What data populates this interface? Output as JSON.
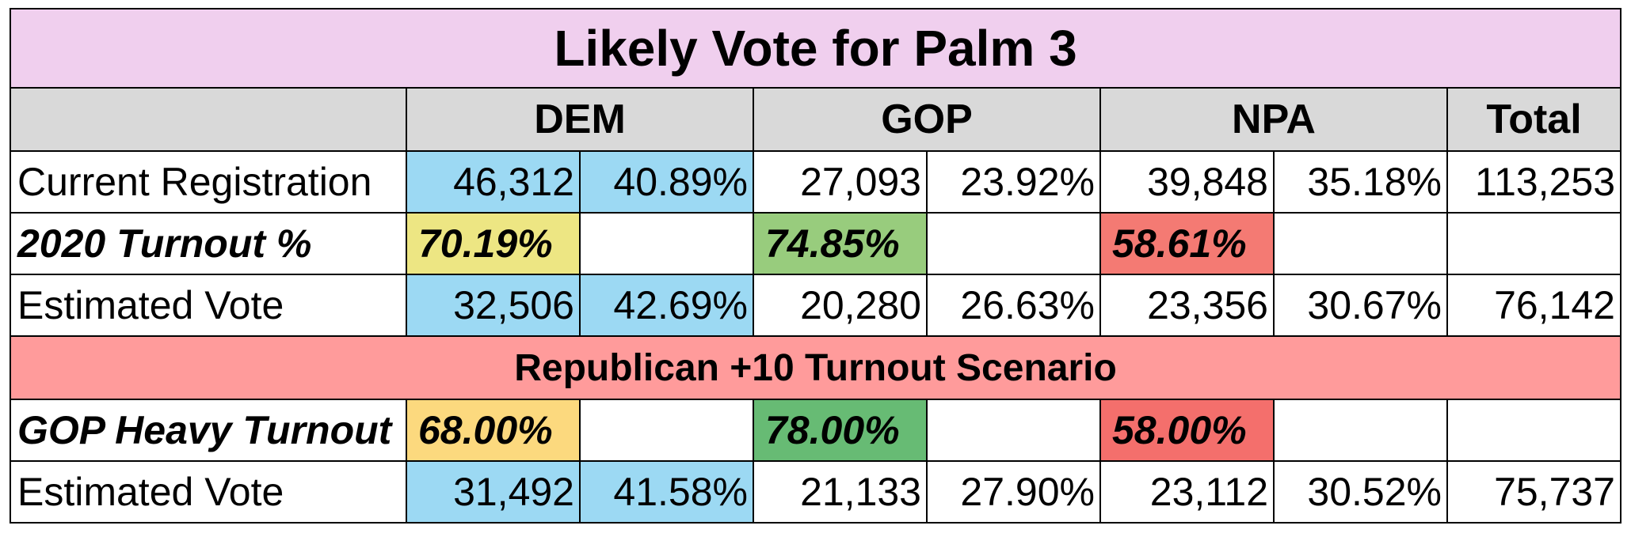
{
  "title": "Likely Vote for Palm 3",
  "headers": {
    "dem": "DEM",
    "gop": "GOP",
    "npa": "NPA",
    "total": "Total"
  },
  "current_registration": {
    "label": "Current Registration",
    "dem_count": "46,312",
    "dem_pct": "40.89%",
    "gop_count": "27,093",
    "gop_pct": "23.92%",
    "npa_count": "39,848",
    "npa_pct": "35.18%",
    "total": "113,253"
  },
  "turnout_2020": {
    "label": "2020 Turnout %",
    "dem": "70.19%",
    "gop": "74.85%",
    "npa": "58.61%"
  },
  "estimated_vote_1": {
    "label": "Estimated Vote",
    "dem_count": "32,506",
    "dem_pct": "42.69%",
    "gop_count": "20,280",
    "gop_pct": "26.63%",
    "npa_count": "23,356",
    "npa_pct": "30.67%",
    "total": "76,142"
  },
  "scenario": {
    "title": "Republican +10 Turnout Scenario"
  },
  "gop_heavy_turnout": {
    "label": "GOP Heavy Turnout",
    "dem": "68.00%",
    "gop": "78.00%",
    "npa": "58.00%"
  },
  "estimated_vote_2": {
    "label": "Estimated Vote",
    "dem_count": "31,492",
    "dem_pct": "41.58%",
    "gop_count": "21,133",
    "gop_pct": "27.90%",
    "npa_count": "23,112",
    "npa_pct": "30.52%",
    "total": "75,737"
  },
  "colors": {
    "title_bg": "#f0cfee",
    "header_bg": "#d9d9d9",
    "scenario_bg": "#ff9b9b",
    "dem_blue": "#9cd9f3",
    "turnout_dem": "#ede683",
    "turnout_gop": "#98cc7d",
    "turnout_npa": "#f47a73",
    "heavy_dem": "#fcd97e",
    "heavy_gop": "#67bb74",
    "heavy_npa": "#f46f6c"
  }
}
